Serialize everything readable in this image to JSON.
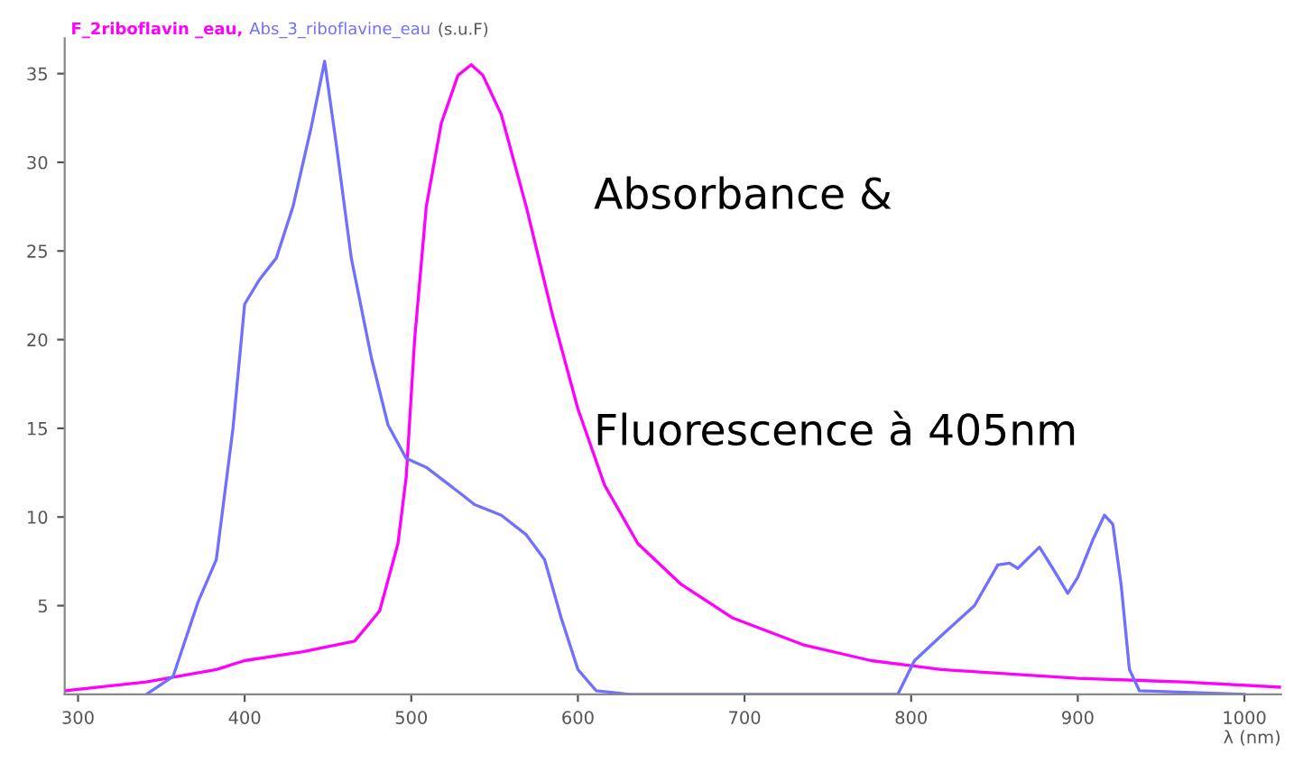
{
  "chart_data": {
    "type": "line",
    "ylabel": "(s.u.F)",
    "xlabel": "λ (nm)",
    "xlim": [
      292,
      1022
    ],
    "ylim": [
      0,
      37
    ],
    "xticks": [
      300,
      400,
      500,
      600,
      700,
      800,
      900,
      1000
    ],
    "yticks": [
      5,
      10,
      15,
      20,
      25,
      30,
      35
    ],
    "grid": false,
    "annotations": [
      "Absorbance &",
      "Fluorescence à 405nm"
    ],
    "series": [
      {
        "name": "F_2riboflavin _eau,",
        "color": "#ff00ff",
        "x": [
          292,
          341,
          383,
          400,
          435,
          466,
          481,
          492,
          497,
          502,
          509,
          518,
          528,
          536,
          543,
          554,
          569,
          585,
          600,
          616,
          636,
          662,
          693,
          735,
          776,
          818,
          900,
          963,
          1022
        ],
        "values": [
          0.2,
          0.7,
          1.4,
          1.9,
          2.4,
          3,
          4.7,
          8.5,
          12.3,
          20,
          27.5,
          32.2,
          34.9,
          35.5,
          34.9,
          32.7,
          27.5,
          21.3,
          16.1,
          11.8,
          8.5,
          6.2,
          4.3,
          2.8,
          1.9,
          1.4,
          0.9,
          0.7,
          0.4
        ]
      },
      {
        "name": "Abs_3_riboflavine_eau",
        "color": "#7070ff",
        "x": [
          341,
          357,
          372,
          383,
          393,
          400,
          409,
          419,
          429,
          440,
          448,
          455,
          464,
          476,
          486,
          497,
          509,
          523,
          538,
          554,
          569,
          580,
          590,
          600,
          611,
          631,
          792,
          802,
          818,
          838,
          852,
          859,
          864,
          877,
          885,
          894,
          900,
          909,
          916,
          921,
          926,
          931,
          937,
          1000
        ],
        "values": [
          0,
          1,
          5.2,
          7.6,
          15,
          22,
          23.4,
          24.6,
          27.5,
          32,
          35.7,
          31,
          24.6,
          19,
          15.2,
          13.3,
          12.8,
          11.8,
          10.7,
          10.1,
          9,
          7.6,
          4.3,
          1.4,
          0.2,
          0,
          0,
          1.9,
          3.3,
          5,
          7.3,
          7.4,
          7.1,
          8.3,
          7.1,
          5.7,
          6.6,
          8.7,
          10.1,
          9.6,
          6.2,
          1.4,
          0.2,
          0
        ]
      }
    ]
  }
}
